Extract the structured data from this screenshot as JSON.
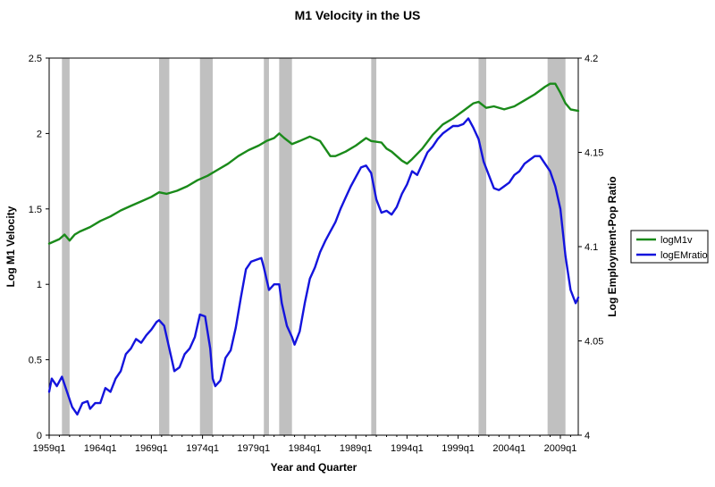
{
  "chart_data": {
    "type": "line",
    "title": "M1 Velocity in the US",
    "xlabel": "Year and Quarter",
    "ylabel_left": "Log M1 Velocity",
    "ylabel_right": "Log Employment-Pop Ratio",
    "x_range": [
      1959.0,
      2010.75
    ],
    "x_ticks": [
      "1959q1",
      "1964q1",
      "1969q1",
      "1974q1",
      "1979q1",
      "1984q1",
      "1989q1",
      "1994q1",
      "1999q1",
      "2004q1",
      "2009q1"
    ],
    "y_left": {
      "lim": [
        0,
        2.5
      ],
      "ticks": [
        "0",
        "0.5",
        "1",
        "1.5",
        "2",
        "2.5"
      ]
    },
    "y_right": {
      "lim": [
        4,
        4.2
      ],
      "ticks": [
        "4",
        "4.05",
        "4.1",
        "4.15",
        "4.2"
      ]
    },
    "grid": false,
    "legend_position": "right",
    "recessions": [
      [
        1960.25,
        1961.0
      ],
      [
        1969.75,
        1970.75
      ],
      [
        1973.75,
        1975.0
      ],
      [
        1980.0,
        1980.5
      ],
      [
        1981.5,
        1982.75
      ],
      [
        1990.5,
        1991.0
      ],
      [
        2001.0,
        2001.75
      ],
      [
        2007.75,
        2009.5
      ]
    ],
    "series": [
      {
        "name": "logM1v",
        "axis": "left",
        "color": "#1a8a1a",
        "x": [
          1959.0,
          1960.0,
          1960.5,
          1961.0,
          1961.5,
          1962.0,
          1963.0,
          1964.0,
          1965.0,
          1966.0,
          1967.0,
          1968.0,
          1969.0,
          1969.75,
          1970.5,
          1971.5,
          1972.5,
          1973.5,
          1974.5,
          1975.5,
          1976.5,
          1977.5,
          1978.5,
          1979.5,
          1980.25,
          1981.0,
          1981.5,
          1982.0,
          1982.75,
          1983.5,
          1984.5,
          1985.5,
          1986.5,
          1987.0,
          1988.0,
          1989.0,
          1990.0,
          1990.5,
          1991.5,
          1992.0,
          1992.5,
          1993.5,
          1994.0,
          1994.5,
          1995.5,
          1996.5,
          1997.5,
          1998.5,
          1999.5,
          2000.5,
          2001.0,
          2001.75,
          2002.5,
          2003.5,
          2004.5,
          2005.5,
          2006.5,
          2007.5,
          2008.0,
          2008.5,
          2009.0,
          2009.5,
          2010.0,
          2010.75
        ],
        "y": [
          1.27,
          1.3,
          1.33,
          1.29,
          1.33,
          1.35,
          1.38,
          1.42,
          1.45,
          1.49,
          1.52,
          1.55,
          1.58,
          1.61,
          1.6,
          1.62,
          1.65,
          1.69,
          1.72,
          1.76,
          1.8,
          1.85,
          1.89,
          1.92,
          1.95,
          1.97,
          2.0,
          1.97,
          1.93,
          1.95,
          1.98,
          1.95,
          1.85,
          1.85,
          1.88,
          1.92,
          1.97,
          1.95,
          1.94,
          1.9,
          1.88,
          1.82,
          1.8,
          1.83,
          1.9,
          1.99,
          2.06,
          2.1,
          2.15,
          2.2,
          2.21,
          2.17,
          2.18,
          2.16,
          2.18,
          2.22,
          2.26,
          2.31,
          2.33,
          2.33,
          2.27,
          2.2,
          2.16,
          2.15
        ]
      },
      {
        "name": "logEMratio",
        "axis": "right",
        "color": "#1414dd",
        "x": [
          1959.0,
          1959.25,
          1959.75,
          1960.25,
          1960.75,
          1961.25,
          1961.75,
          1962.25,
          1962.75,
          1963.0,
          1963.5,
          1964.0,
          1964.5,
          1965.0,
          1965.5,
          1966.0,
          1966.5,
          1967.0,
          1967.5,
          1968.0,
          1968.5,
          1969.0,
          1969.5,
          1969.75,
          1970.25,
          1970.75,
          1971.25,
          1971.75,
          1972.25,
          1972.75,
          1973.25,
          1973.75,
          1974.25,
          1974.75,
          1975.0,
          1975.25,
          1975.75,
          1976.25,
          1976.75,
          1977.25,
          1977.75,
          1978.25,
          1978.75,
          1979.25,
          1979.75,
          1980.0,
          1980.25,
          1980.5,
          1981.0,
          1981.5,
          1981.75,
          1982.25,
          1982.75,
          1983.0,
          1983.5,
          1984.0,
          1984.5,
          1985.0,
          1985.5,
          1986.0,
          1986.5,
          1987.0,
          1987.5,
          1988.0,
          1988.5,
          1989.0,
          1989.5,
          1990.0,
          1990.5,
          1991.0,
          1991.5,
          1992.0,
          1992.5,
          1993.0,
          1993.5,
          1994.0,
          1994.5,
          1995.0,
          1995.5,
          1996.0,
          1996.5,
          1997.0,
          1997.5,
          1998.0,
          1998.5,
          1999.0,
          1999.5,
          2000.0,
          2000.5,
          2001.0,
          2001.5,
          2002.0,
          2002.5,
          2003.0,
          2003.5,
          2004.0,
          2004.5,
          2005.0,
          2005.5,
          2006.0,
          2006.5,
          2007.0,
          2007.5,
          2008.0,
          2008.5,
          2009.0,
          2009.5,
          2010.0,
          2010.5,
          2010.75
        ],
        "y": [
          4.023,
          4.03,
          4.026,
          4.031,
          4.023,
          4.015,
          4.011,
          4.017,
          4.018,
          4.014,
          4.017,
          4.017,
          4.025,
          4.023,
          4.03,
          4.034,
          4.043,
          4.046,
          4.051,
          4.049,
          4.053,
          4.056,
          4.06,
          4.061,
          4.058,
          4.046,
          4.034,
          4.036,
          4.043,
          4.046,
          4.052,
          4.064,
          4.063,
          4.046,
          4.03,
          4.026,
          4.029,
          4.041,
          4.045,
          4.057,
          4.073,
          4.088,
          4.092,
          4.093,
          4.094,
          4.089,
          4.083,
          4.077,
          4.08,
          4.08,
          4.07,
          4.058,
          4.052,
          4.048,
          4.055,
          4.07,
          4.083,
          4.089,
          4.097,
          4.103,
          4.108,
          4.113,
          4.12,
          4.126,
          4.132,
          4.137,
          4.142,
          4.143,
          4.139,
          4.125,
          4.118,
          4.119,
          4.117,
          4.121,
          4.128,
          4.133,
          4.14,
          4.138,
          4.144,
          4.15,
          4.153,
          4.157,
          4.16,
          4.162,
          4.164,
          4.164,
          4.165,
          4.168,
          4.163,
          4.157,
          4.145,
          4.138,
          4.131,
          4.13,
          4.132,
          4.134,
          4.138,
          4.14,
          4.144,
          4.146,
          4.148,
          4.148,
          4.144,
          4.14,
          4.132,
          4.12,
          4.095,
          4.077,
          4.07,
          4.073
        ]
      }
    ]
  }
}
